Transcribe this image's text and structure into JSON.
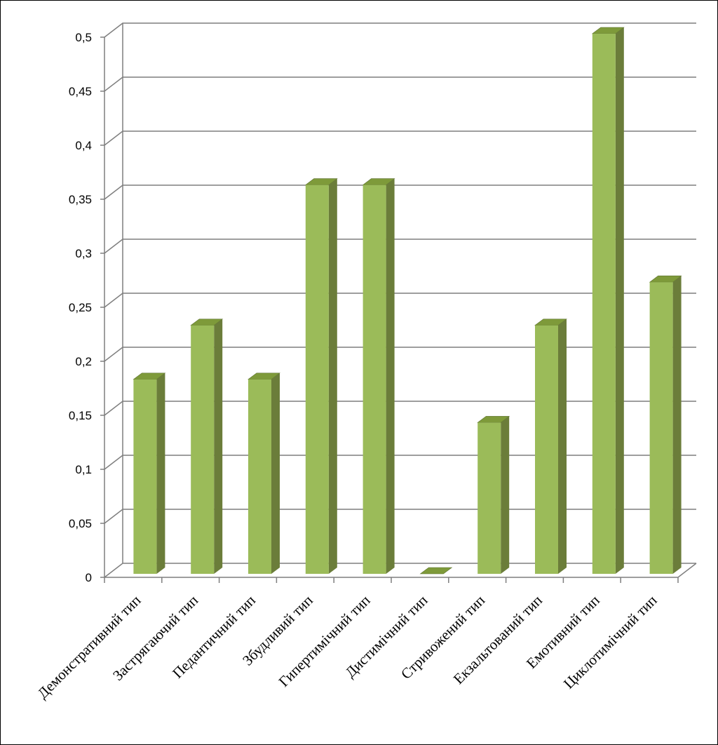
{
  "chart_data": {
    "type": "bar",
    "title": "",
    "xlabel": "",
    "ylabel": "",
    "categories": [
      "Демонстративний тип",
      "Застрягаючий тип",
      "Педантичний тип",
      "Збудливий тип",
      "Гипертимічний тип",
      "Дистимічний тип",
      "Стривожений тип",
      "Екзальтований тип",
      "Емотивний тип",
      "Циклотимічний тип"
    ],
    "values": [
      0.18,
      0.23,
      0.18,
      0.36,
      0.36,
      0,
      0.14,
      0.23,
      0.5,
      0.27
    ],
    "ylim": [
      0,
      0.5
    ],
    "yticks": [
      "0",
      "0,05",
      "0,1",
      "0,15",
      "0,2",
      "0,25",
      "0,3",
      "0,35",
      "0,4",
      "0,45",
      "0,5"
    ],
    "ytick_values": [
      0,
      0.05,
      0.1,
      0.15,
      0.2,
      0.25,
      0.3,
      0.35,
      0.4,
      0.45,
      0.5
    ],
    "grid": true,
    "legend": "none",
    "three_d": true,
    "colors": {
      "bar_front": "#9BBB59",
      "bar_side": "#6B7D3A",
      "bar_top": "#7E9A3A",
      "grid": "#7F7F7F",
      "axis": "#7F7F7F"
    }
  }
}
